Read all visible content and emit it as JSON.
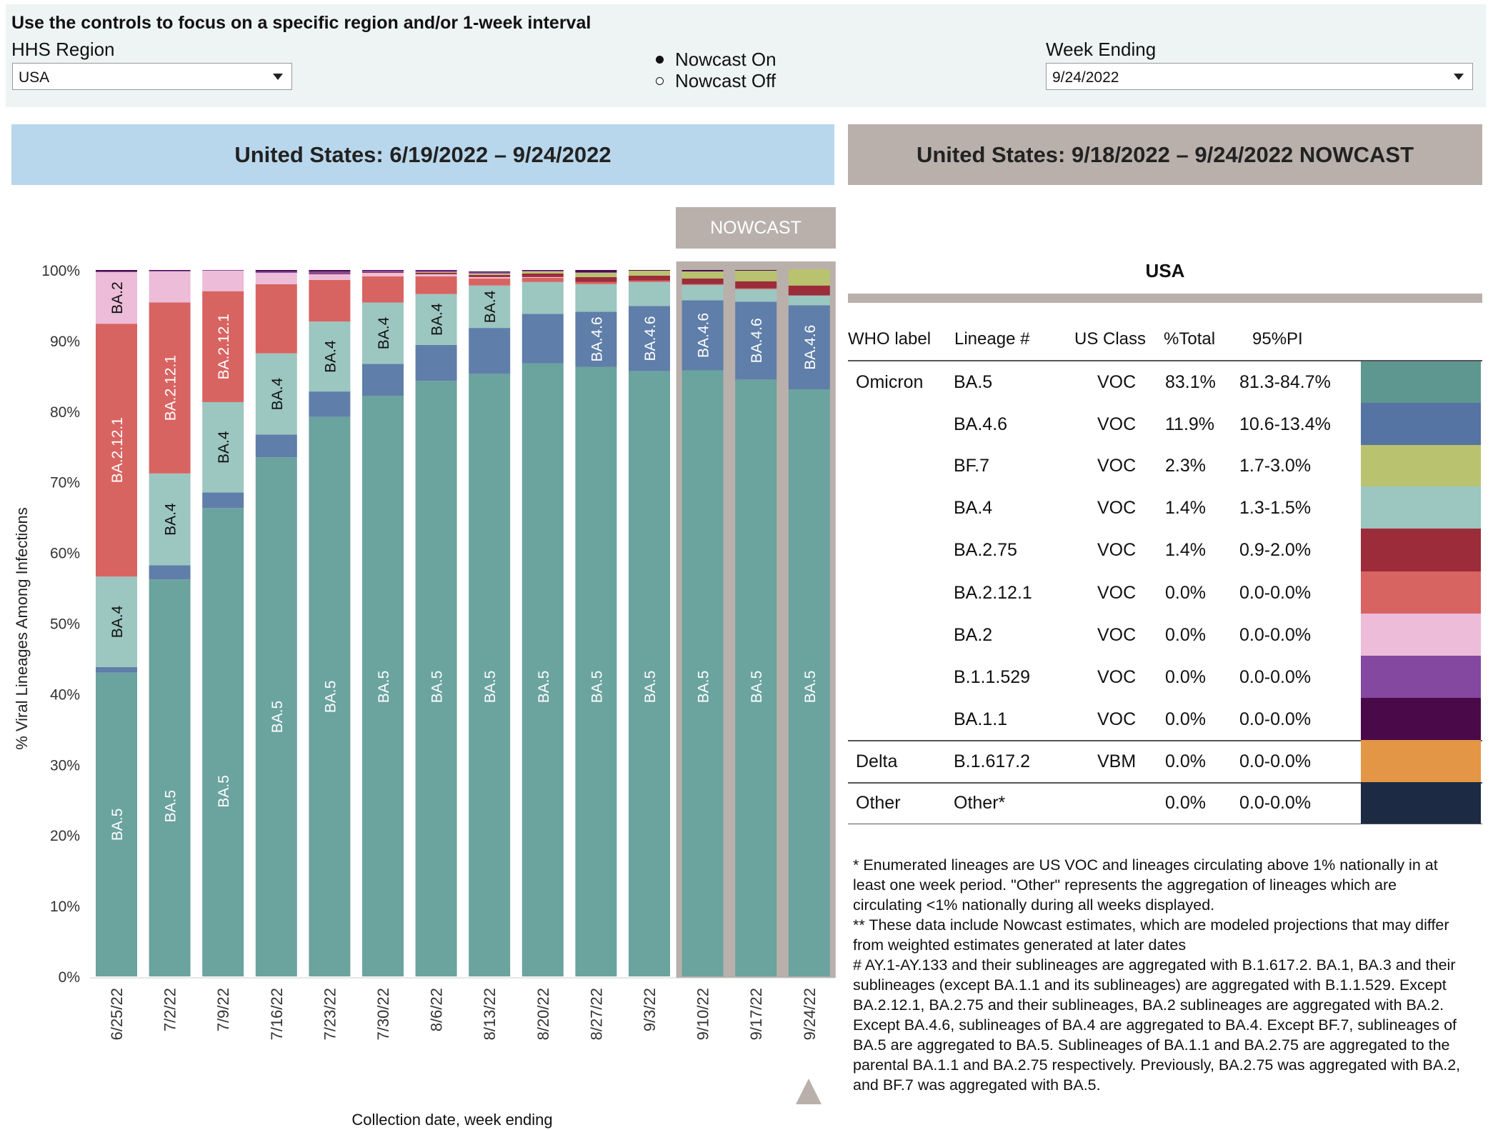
{
  "controls": {
    "title": "Use the controls to focus on a specific region and/or 1-week interval",
    "region_label": "HHS Region",
    "region_value": "USA",
    "nowcast_on": "Nowcast On",
    "nowcast_off": "Nowcast Off",
    "week_label": "Week Ending",
    "week_value": "9/24/2022"
  },
  "banners": {
    "left": "United States: 6/19/2022 – 9/24/2022",
    "right": "United States: 9/18/2022 – 9/24/2022 NOWCAST"
  },
  "nowcast_tag": "NOWCAST",
  "colors": {
    "BA.5": "#6ba39f",
    "BA.4.6": "#5f7ea9",
    "BF.7": "#b9c26e",
    "BA.4": "#9cc6c0",
    "BA.2.75": "#9c2c3a",
    "BA.2.12.1": "#d86462",
    "BA.2": "#ecbcd9",
    "B.1.1.529": "#8448a0",
    "BA.1.1": "#4a0a4a",
    "B.1.617.2": "#e39645",
    "Other": "#1c2a43",
    "nowcast_bg": "#b9b0ab"
  },
  "chart_data": {
    "type": "bar",
    "stacked": true,
    "ylabel": "% Viral Lineages Among Infections",
    "xlabel": "Collection date, week ending",
    "ylim": [
      0,
      100
    ],
    "yticks": [
      "0%",
      "10%",
      "20%",
      "30%",
      "40%",
      "50%",
      "60%",
      "70%",
      "80%",
      "90%",
      "100%"
    ],
    "categories": [
      "6/25/22",
      "7/2/22",
      "7/9/22",
      "7/16/22",
      "7/23/22",
      "7/30/22",
      "8/6/22",
      "8/13/22",
      "8/20/22",
      "8/27/22",
      "9/3/22",
      "9/10/22",
      "9/17/22",
      "9/24/22"
    ],
    "nowcast_categories": [
      "9/10/22",
      "9/17/22",
      "9/24/22"
    ],
    "series": [
      {
        "name": "BA.5",
        "values": [
          43.0,
          56.2,
          66.3,
          73.5,
          79.2,
          82.2,
          84.3,
          85.3,
          86.8,
          86.3,
          85.7,
          85.8,
          84.5,
          83.1
        ]
      },
      {
        "name": "BA.4.6",
        "values": [
          0.8,
          2.0,
          2.2,
          3.2,
          3.6,
          4.5,
          5.1,
          6.5,
          7.0,
          7.8,
          9.2,
          9.9,
          11.0,
          11.9
        ]
      },
      {
        "name": "BA.4",
        "values": [
          12.8,
          13.0,
          12.8,
          11.5,
          9.9,
          8.7,
          7.2,
          6.0,
          4.5,
          3.9,
          3.4,
          2.2,
          1.8,
          1.4
        ]
      },
      {
        "name": "BA.2.12.1",
        "values": [
          35.8,
          24.2,
          15.7,
          9.8,
          5.9,
          3.7,
          2.5,
          1.0,
          0.6,
          0.3,
          0.2,
          0.1,
          0.1,
          0.0
        ]
      },
      {
        "name": "BA.2",
        "values": [
          7.3,
          4.4,
          2.9,
          1.6,
          0.8,
          0.5,
          0.3,
          0.2,
          0.1,
          0.0,
          0.0,
          0.0,
          0.0,
          0.0
        ]
      },
      {
        "name": "BA.2.75",
        "values": [
          0.0,
          0.0,
          0.0,
          0.0,
          0.1,
          0.1,
          0.2,
          0.3,
          0.5,
          0.7,
          0.7,
          0.8,
          1.0,
          1.4
        ]
      },
      {
        "name": "BF.7",
        "values": [
          0.0,
          0.0,
          0.0,
          0.0,
          0.0,
          0.0,
          0.1,
          0.2,
          0.3,
          0.6,
          0.7,
          1.0,
          1.5,
          2.3
        ]
      },
      {
        "name": "B.1.1.529",
        "values": [
          0.1,
          0.1,
          0.1,
          0.2,
          0.3,
          0.2,
          0.2,
          0.2,
          0.1,
          0.1,
          0.0,
          0.0,
          0.0,
          0.0
        ]
      },
      {
        "name": "BA.1.1",
        "values": [
          0.2,
          0.1,
          0.0,
          0.2,
          0.2,
          0.1,
          0.1,
          0.1,
          0.1,
          0.3,
          0.1,
          0.2,
          0.1,
          0.0
        ]
      }
    ],
    "bar_labels": [
      {
        "bar": 0,
        "series": "BA.5",
        "text": "BA.5"
      },
      {
        "bar": 0,
        "series": "BA.4",
        "text": "BA.4"
      },
      {
        "bar": 0,
        "series": "BA.2.12.1",
        "text": "BA.2.12.1"
      },
      {
        "bar": 0,
        "series": "BA.2",
        "text": "BA.2"
      },
      {
        "bar": 1,
        "series": "BA.5",
        "text": "BA.5"
      },
      {
        "bar": 1,
        "series": "BA.4",
        "text": "BA.4"
      },
      {
        "bar": 1,
        "series": "BA.2.12.1",
        "text": "BA.2.12.1"
      },
      {
        "bar": 2,
        "series": "BA.5",
        "text": "BA.5"
      },
      {
        "bar": 2,
        "series": "BA.4",
        "text": "BA.4"
      },
      {
        "bar": 2,
        "series": "BA.2.12.1",
        "text": "BA.2.12.1"
      },
      {
        "bar": 3,
        "series": "BA.5",
        "text": "BA.5"
      },
      {
        "bar": 3,
        "series": "BA.4",
        "text": "BA.4"
      },
      {
        "bar": 4,
        "series": "BA.5",
        "text": "BA.5"
      },
      {
        "bar": 4,
        "series": "BA.4",
        "text": "BA.4"
      },
      {
        "bar": 5,
        "series": "BA.5",
        "text": "BA.5"
      },
      {
        "bar": 5,
        "series": "BA.4",
        "text": "BA.4"
      },
      {
        "bar": 6,
        "series": "BA.5",
        "text": "BA.5"
      },
      {
        "bar": 6,
        "series": "BA.4",
        "text": "BA.4"
      },
      {
        "bar": 7,
        "series": "BA.5",
        "text": "BA.5"
      },
      {
        "bar": 7,
        "series": "BA.4",
        "text": "BA.4"
      },
      {
        "bar": 8,
        "series": "BA.5",
        "text": "BA.5"
      },
      {
        "bar": 9,
        "series": "BA.5",
        "text": "BA.5"
      },
      {
        "bar": 9,
        "series": "BA.4.6",
        "text": "BA.4.6"
      },
      {
        "bar": 10,
        "series": "BA.5",
        "text": "BA.5"
      },
      {
        "bar": 10,
        "series": "BA.4.6",
        "text": "BA.4.6"
      },
      {
        "bar": 11,
        "series": "BA.5",
        "text": "BA.5"
      },
      {
        "bar": 11,
        "series": "BA.4.6",
        "text": "BA.4.6"
      },
      {
        "bar": 12,
        "series": "BA.5",
        "text": "BA.5"
      },
      {
        "bar": 12,
        "series": "BA.4.6",
        "text": "BA.4.6"
      },
      {
        "bar": 13,
        "series": "BA.5",
        "text": "BA.5"
      },
      {
        "bar": 13,
        "series": "BA.4.6",
        "text": "BA.4.6"
      }
    ]
  },
  "table": {
    "title": "USA",
    "headers": [
      "WHO label",
      "Lineage #",
      "US Class",
      "%Total",
      "95%PI"
    ],
    "rows": [
      {
        "who": "Omicron",
        "lineage": "BA.5",
        "cls": "VOC",
        "total": "83.1%",
        "pi": "81.3-84.7%",
        "color": "#5e9790"
      },
      {
        "who": "",
        "lineage": "BA.4.6",
        "cls": "VOC",
        "total": "11.9%",
        "pi": "10.6-13.4%",
        "color": "#5574a4"
      },
      {
        "who": "",
        "lineage": "BF.7",
        "cls": "VOC",
        "total": "2.3%",
        "pi": "1.7-3.0%",
        "color": "#b9c26e"
      },
      {
        "who": "",
        "lineage": "BA.4",
        "cls": "VOC",
        "total": "1.4%",
        "pi": "1.3-1.5%",
        "color": "#9cc6c0"
      },
      {
        "who": "",
        "lineage": "BA.2.75",
        "cls": "VOC",
        "total": "1.4%",
        "pi": "0.9-2.0%",
        "color": "#9c2c3a"
      },
      {
        "who": "",
        "lineage": "BA.2.12.1",
        "cls": "VOC",
        "total": "0.0%",
        "pi": "0.0-0.0%",
        "color": "#d86462"
      },
      {
        "who": "",
        "lineage": "BA.2",
        "cls": "VOC",
        "total": "0.0%",
        "pi": "0.0-0.0%",
        "color": "#ecbcd9"
      },
      {
        "who": "",
        "lineage": "B.1.1.529",
        "cls": "VOC",
        "total": "0.0%",
        "pi": "0.0-0.0%",
        "color": "#8448a0"
      },
      {
        "who": "",
        "lineage": "BA.1.1",
        "cls": "VOC",
        "total": "0.0%",
        "pi": "0.0-0.0%",
        "color": "#4a0a4a"
      },
      {
        "who": "Delta",
        "lineage": "B.1.617.2",
        "cls": "VBM",
        "total": "0.0%",
        "pi": "0.0-0.0%",
        "color": "#e39645"
      },
      {
        "who": "Other",
        "lineage": "Other*",
        "cls": "",
        "total": "0.0%",
        "pi": "0.0-0.0%",
        "color": "#1c2a43"
      }
    ]
  },
  "notes": [
    "*      Enumerated lineages are US VOC and lineages circulating above 1% nationally in at least one week period. \"Other\" represents the aggregation of lineages which are circulating <1% nationally during all weeks displayed.",
    "**      These data include Nowcast estimates, which are modeled projections that may differ from weighted estimates generated at later dates",
    "#      AY.1-AY.133 and their sublineages are aggregated with B.1.617.2. BA.1, BA.3 and their sublineages (except BA.1.1 and its sublineages) are aggregated with B.1.1.529. Except BA.2.12.1, BA.2.75 and their sublineages, BA.2 sublineages are aggregated with BA.2. Except BA.4.6, sublineages of BA.4 are aggregated to BA.4. Except BF.7, sublineages of BA.5 are aggregated to BA.5. Sublineages of BA.1.1 and BA.2.75 are aggregated to the parental BA.1.1 and BA.2.75 respectively. Previously, BA.2.75 was aggregated with BA.2, and BF.7 was aggregated with BA.5."
  ]
}
